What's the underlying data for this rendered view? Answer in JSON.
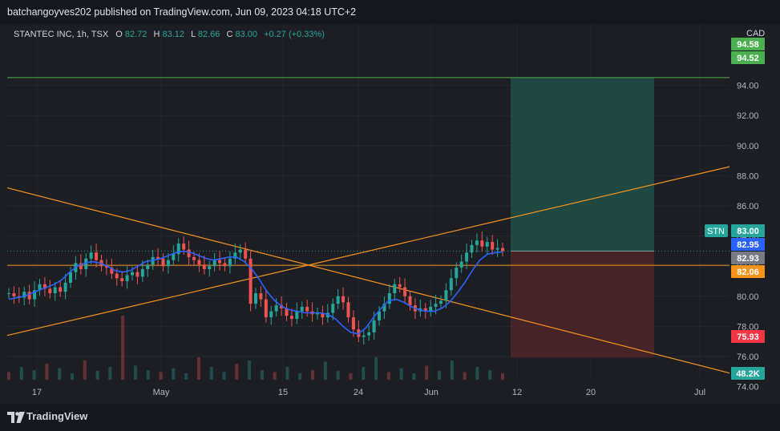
{
  "header": {
    "publisher": "batchangoyves202 published on TradingView.com, Jun 09, 2023 04:18 UTC+2"
  },
  "legend": {
    "symbol": "STANTEC INC, 1h, TSX",
    "o_label": "O",
    "o_value": "82.72",
    "h_label": "H",
    "h_value": "83.12",
    "l_label": "L",
    "l_value": "82.66",
    "c_label": "C",
    "c_value": "83.00",
    "change": "+0.27 (+0.33%)"
  },
  "currency": "CAD",
  "footer": {
    "brand": "TradingView"
  },
  "colors": {
    "up": "#26a69a",
    "down": "#ef5350",
    "ma": "#2962ff",
    "trendline": "#f7931a",
    "target": "#4caf50",
    "stop": "#f23645"
  },
  "chart_data": {
    "type": "candlestick",
    "symbol": "STN",
    "interval": "1h",
    "y_axis": {
      "ticks": [
        74.0,
        76.0,
        78.0,
        80.0,
        82.0,
        84.0,
        86.0,
        88.0,
        90.0,
        92.0,
        94.0
      ],
      "ylim": [
        73.6,
        95.0
      ]
    },
    "x_axis": {
      "ticks": [
        "17",
        "May",
        "15",
        "24",
        "Jun",
        "12",
        "20",
        "Jul"
      ]
    },
    "price_labels": [
      {
        "text": "94.58",
        "value": 94.58,
        "color": "#4caf50"
      },
      {
        "text": "94.52",
        "value": 94.52,
        "color": "#4caf50"
      },
      {
        "text": "83.00",
        "value": 83.0,
        "color": "#26a69a",
        "prefix": "STN"
      },
      {
        "text": "82.95",
        "value": 82.95,
        "color": "#2962ff"
      },
      {
        "text": "82.93",
        "value": 82.93,
        "color": "#787b86"
      },
      {
        "text": "82.06",
        "value": 82.06,
        "color": "#f7931a"
      },
      {
        "text": "75.93",
        "value": 75.93,
        "color": "#f23645"
      }
    ],
    "volume_label": "48.2K",
    "position": {
      "entry": 83.0,
      "target": 94.52,
      "stop": 75.93
    },
    "horizontal_lines": [
      {
        "name": "resistance",
        "value": 94.52,
        "color": "#4caf50"
      },
      {
        "name": "support",
        "value": 82.06,
        "color": "#f7931a"
      }
    ],
    "trendlines": [
      {
        "name": "descending",
        "from": {
          "x": 0,
          "price": 87.2
        },
        "to": {
          "x": 1,
          "price": 74.9
        }
      },
      {
        "name": "ascending",
        "from": {
          "x": 0,
          "price": 77.4
        },
        "to": {
          "x": 1,
          "price": 88.6
        }
      }
    ],
    "close_path": [
      80.2,
      80.0,
      79.9,
      80.3,
      79.8,
      80.4,
      80.8,
      80.5,
      80.2,
      80.6,
      80.3,
      80.9,
      81.6,
      82.2,
      81.8,
      82.5,
      82.9,
      82.4,
      82.0,
      81.9,
      81.5,
      81.2,
      81.0,
      81.4,
      81.6,
      81.3,
      81.8,
      82.1,
      82.6,
      82.5,
      82.0,
      82.4,
      82.8,
      83.5,
      83.1,
      82.6,
      82.4,
      82.1,
      81.8,
      82.0,
      82.4,
      82.2,
      82.0,
      82.5,
      82.9,
      83.1,
      82.5,
      79.5,
      80.2,
      79.8,
      78.6,
      79.0,
      79.4,
      79.2,
      78.7,
      78.5,
      79.0,
      79.3,
      79.0,
      78.8,
      78.9,
      78.6,
      78.9,
      79.5,
      80.0,
      79.6,
      78.6,
      77.8,
      77.3,
      77.4,
      77.6,
      78.4,
      79.0,
      79.5,
      80.2,
      80.8,
      80.6,
      80.0,
      79.4,
      79.0,
      79.2,
      79.0,
      79.3,
      79.5,
      79.7,
      80.4,
      81.2,
      81.9,
      82.3,
      82.9,
      83.4,
      83.7,
      83.3,
      83.6,
      83.1,
      83.2,
      83.0
    ],
    "ma_path": [
      79.8,
      79.9,
      80.0,
      80.2,
      80.4,
      80.6,
      80.8,
      81.1,
      81.6,
      82.0,
      82.2,
      82.3,
      82.2,
      82.0,
      81.7,
      81.6,
      81.7,
      82.0,
      82.3,
      82.4,
      82.5,
      82.7,
      82.9,
      83.0,
      82.9,
      82.7,
      82.5,
      82.4,
      82.5,
      82.6,
      82.6,
      82.3,
      81.8,
      81.1,
      80.3,
      79.7,
      79.3,
      79.1,
      79.0,
      78.9,
      78.9,
      78.9,
      78.8,
      78.5,
      78.0,
      77.6,
      77.5,
      77.9,
      78.6,
      79.2,
      79.7,
      79.8,
      79.6,
      79.3,
      79.1,
      79.0,
      79.0,
      79.2,
      79.6,
      80.2,
      80.9,
      81.7,
      82.4,
      82.8,
      82.9,
      82.95
    ],
    "volume_path": [
      0.12,
      0.2,
      0.15,
      0.25,
      0.18,
      0.1,
      0.3,
      0.14,
      0.2,
      1.0,
      0.22,
      0.15,
      0.12,
      0.18,
      0.1,
      0.35,
      0.2,
      0.12,
      0.25,
      0.3,
      0.15,
      0.12,
      0.2,
      0.1,
      0.15,
      0.28,
      0.14,
      0.1,
      0.2,
      0.35,
      0.12,
      0.18,
      0.1,
      0.22,
      0.14,
      0.3,
      0.12,
      0.2,
      0.15,
      0.1
    ]
  }
}
